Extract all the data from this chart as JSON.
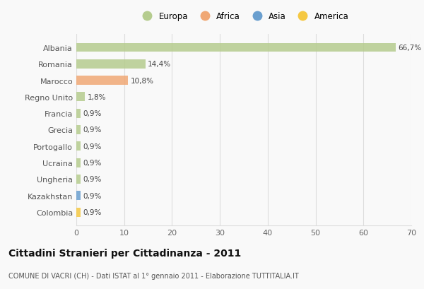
{
  "countries": [
    "Albania",
    "Romania",
    "Marocco",
    "Regno Unito",
    "Francia",
    "Grecia",
    "Portogallo",
    "Ucraina",
    "Ungheria",
    "Kazakhstan",
    "Colombia"
  ],
  "values": [
    66.7,
    14.4,
    10.8,
    1.8,
    0.9,
    0.9,
    0.9,
    0.9,
    0.9,
    0.9,
    0.9
  ],
  "labels": [
    "66,7%",
    "14,4%",
    "10,8%",
    "1,8%",
    "0,9%",
    "0,9%",
    "0,9%",
    "0,9%",
    "0,9%",
    "0,9%",
    "0,9%"
  ],
  "colors": [
    "#b5cc8e",
    "#b5cc8e",
    "#f0a875",
    "#b5cc8e",
    "#b5cc8e",
    "#b5cc8e",
    "#b5cc8e",
    "#b5cc8e",
    "#b5cc8e",
    "#6a9fcf",
    "#f5c842"
  ],
  "legend_labels": [
    "Europa",
    "Africa",
    "Asia",
    "America"
  ],
  "legend_colors": [
    "#b5cc8e",
    "#f0a875",
    "#6a9fcf",
    "#f5c842"
  ],
  "title": "Cittadini Stranieri per Cittadinanza - 2011",
  "subtitle": "COMUNE DI VACRI (CH) - Dati ISTAT al 1° gennaio 2011 - Elaborazione TUTTITALIA.IT",
  "xlim": [
    0,
    70
  ],
  "xticks": [
    0,
    10,
    20,
    30,
    40,
    50,
    60,
    70
  ],
  "background_color": "#f9f9f9",
  "grid_color": "#dddddd",
  "bar_height": 0.55
}
